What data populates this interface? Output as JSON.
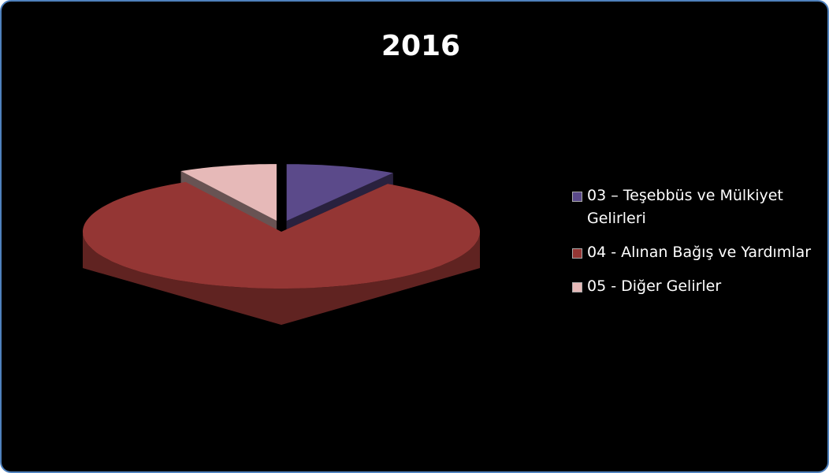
{
  "chart_data": {
    "type": "pie",
    "title": "2016",
    "categories": [
      "03 – Teşebbüs ve Mülkiyet Gelirleri",
      "04 - Alınan Bağış ve Yardımlar",
      "05 -  Diğer Gelirler"
    ],
    "values": [
      9,
      83,
      8
    ],
    "colors": [
      "#5b4a8a",
      "#943634",
      "#e6b9b8"
    ],
    "exploded": [
      true,
      false,
      true
    ],
    "legend": "right"
  }
}
